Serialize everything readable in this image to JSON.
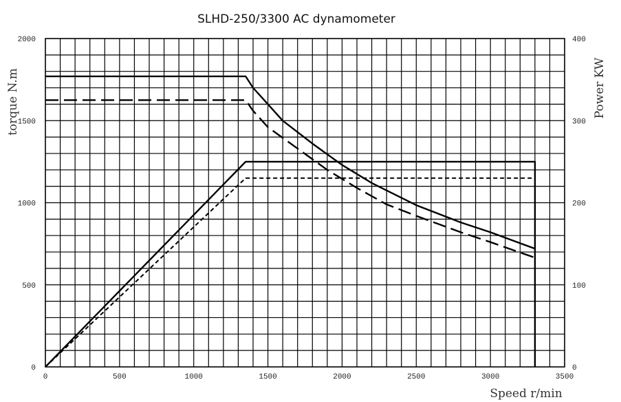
{
  "chart_data": {
    "type": "line",
    "title": "SLHD-250/3300 AC dynamometer",
    "xlabel": "Speed r/min",
    "ylabel_left": "torque N.m",
    "ylabel_right": "Power KW",
    "xlim": [
      0,
      3500
    ],
    "ylim_left": [
      0,
      2000
    ],
    "ylim_right": [
      0,
      400
    ],
    "grid": true,
    "x_ticks": [
      0,
      500,
      1000,
      1500,
      2000,
      2500,
      3000,
      3500
    ],
    "y_left_ticks": [
      0,
      500,
      1000,
      1500,
      2000
    ],
    "y_right_ticks": [
      0,
      100,
      200,
      300,
      400
    ],
    "series": [
      {
        "axis": "left",
        "line_style": "solid",
        "x": [
          0,
          1350,
          1400,
          1500,
          1600,
          1800,
          2000,
          2200,
          2500,
          2800,
          3000,
          3300
        ],
        "y": [
          1770,
          1770,
          1700,
          1600,
          1500,
          1360,
          1230,
          1120,
          985,
          880,
          820,
          720
        ]
      },
      {
        "axis": "left",
        "line_style": "long-dash",
        "x": [
          0,
          1350,
          1400,
          1500,
          1700,
          1900,
          2100,
          2300,
          2500,
          2800,
          3000,
          3300
        ],
        "y": [
          1625,
          1625,
          1560,
          1460,
          1330,
          1200,
          1090,
          990,
          920,
          820,
          760,
          665
        ]
      },
      {
        "axis": "right",
        "line_style": "solid",
        "x": [
          0,
          1350,
          3300,
          3300
        ],
        "y": [
          0,
          250,
          250,
          0
        ]
      },
      {
        "axis": "right",
        "line_style": "short-dash",
        "x": [
          0,
          1350,
          3300
        ],
        "y": [
          0,
          230,
          230
        ]
      }
    ]
  }
}
